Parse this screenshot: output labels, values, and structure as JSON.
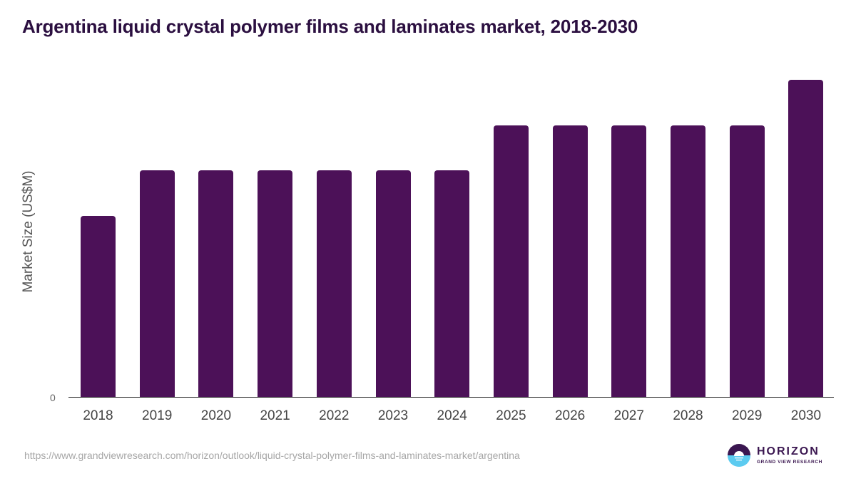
{
  "header": {
    "title": "Argentina liquid crystal polymer films and laminates market, 2018-2030"
  },
  "footer": {
    "url": "https://www.grandviewresearch.com/horizon/outlook/liquid-crystal-polymer-films-and-laminates-market/argentina",
    "logo_name": "HORIZON",
    "logo_sub": "GRAND VIEW RESEARCH"
  },
  "colors": {
    "bar": "#4c1158",
    "title": "#2b0f40",
    "logo_top": "#3a1650",
    "logo_bottom": "#5ccbf0"
  },
  "chart_data": {
    "type": "bar",
    "title": "Argentina liquid crystal polymer films and laminates market, 2018-2030",
    "xlabel": "",
    "ylabel": "Market Size (US$M)",
    "y_ticks": [
      "0"
    ],
    "categories": [
      "2018",
      "2019",
      "2020",
      "2021",
      "2022",
      "2023",
      "2024",
      "2025",
      "2026",
      "2027",
      "2028",
      "2029",
      "2030"
    ],
    "values": [
      4,
      5,
      5,
      5,
      5,
      5,
      5,
      6,
      6,
      6,
      6,
      6,
      7
    ],
    "values_note": "relative heights; absolute values not labeled",
    "ylim": [
      0,
      7.5
    ],
    "grid": false,
    "legend": null
  }
}
